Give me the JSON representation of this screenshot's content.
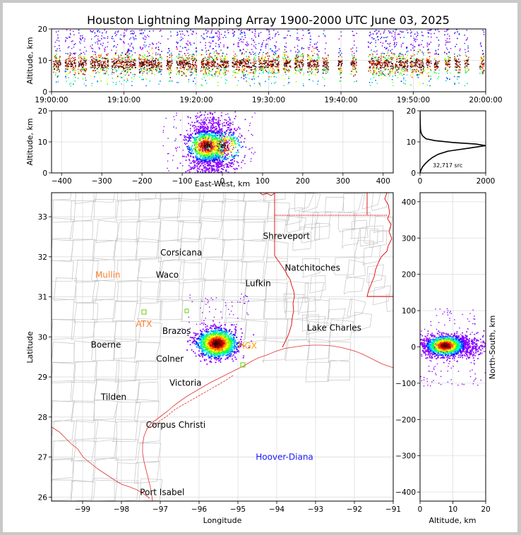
{
  "title": "Houston Lightning Mapping Array 1900-2000 UTC June 03, 2025",
  "chart_data": [
    {
      "type": "scatter",
      "panel": "time-altitude",
      "ylabel": "Altitude, km",
      "xlim": [
        "19:00:00",
        "20:00:00"
      ],
      "ylim": [
        0,
        20
      ],
      "x_ticks": [
        "19:00:00",
        "19:10:00",
        "19:20:00",
        "19:30:00",
        "19:40:00",
        "19:50:00",
        "20:00:00"
      ],
      "y_ticks": [
        0,
        10,
        20
      ],
      "activity_bursts_min": [
        [
          0.2,
          1.2
        ],
        [
          1.8,
          3.3
        ],
        [
          3.6,
          4.8
        ],
        [
          5.3,
          7.8
        ],
        [
          8.2,
          11.6
        ],
        [
          12.0,
          15.2
        ],
        [
          15.8,
          16.6
        ],
        [
          17.2,
          20.0
        ],
        [
          20.5,
          24.4
        ],
        [
          24.9,
          28.2
        ],
        [
          28.5,
          31.4
        ],
        [
          31.9,
          33.0
        ],
        [
          33.5,
          34.8
        ],
        [
          35.3,
          36.9
        ],
        [
          37.4,
          38.2
        ],
        [
          39.5,
          40.1
        ],
        [
          41.3,
          42.1
        ],
        [
          43.7,
          49.2
        ],
        [
          49.5,
          51.4
        ],
        [
          51.7,
          52.4
        ],
        [
          52.8,
          53.5
        ],
        [
          54.2,
          55.1
        ],
        [
          55.6,
          56.4
        ],
        [
          57.0,
          57.6
        ],
        [
          59.1,
          59.7
        ]
      ],
      "core_altitude_km": [
        7,
        11
      ]
    },
    {
      "type": "scatter",
      "panel": "east-west-altitude",
      "xlabel": "East-West, km",
      "ylabel": "Altitude, km",
      "xlim": [
        -425,
        425
      ],
      "ylim": [
        0,
        20
      ],
      "x_ticks": [
        -400,
        -300,
        -200,
        -100,
        0,
        100,
        200,
        300,
        400
      ],
      "y_ticks": [
        0,
        10,
        20
      ],
      "cell_centers_x_km": [
        -40,
        0
      ],
      "core_altitude_km": [
        6,
        11
      ]
    },
    {
      "type": "line",
      "panel": "altitude-histogram",
      "xlim": [
        0,
        2000
      ],
      "ylim": [
        0,
        20
      ],
      "x_ticks": [
        0,
        2000
      ],
      "y_ticks": [
        0,
        10,
        20
      ],
      "annotation": "32,717 src",
      "profile": [
        [
          0,
          0
        ],
        [
          30,
          1
        ],
        [
          80,
          2
        ],
        [
          160,
          3
        ],
        [
          260,
          4
        ],
        [
          380,
          5
        ],
        [
          550,
          6
        ],
        [
          850,
          7
        ],
        [
          1500,
          8
        ],
        [
          2000,
          8.8
        ],
        [
          1700,
          9.3
        ],
        [
          1000,
          9.8
        ],
        [
          450,
          10.4
        ],
        [
          180,
          11
        ],
        [
          70,
          12
        ],
        [
          30,
          13
        ],
        [
          12,
          14
        ],
        [
          6,
          16
        ],
        [
          2,
          18
        ],
        [
          1,
          20
        ]
      ]
    },
    {
      "type": "scatter",
      "panel": "plan-view-map",
      "xlabel": "Longitude",
      "ylabel": "Latitude",
      "xlim": [
        -99.8,
        -91
      ],
      "ylim": [
        25.9,
        33.6
      ],
      "x_ticks": [
        -99,
        -98,
        -97,
        -96,
        -95,
        -94,
        -93,
        -92,
        -91
      ],
      "y_ticks": [
        26,
        27,
        28,
        29,
        30,
        31,
        32,
        33
      ],
      "city_labels": [
        {
          "name": "Shreveport",
          "lon": -93.75,
          "lat": 32.52,
          "color": "#000000"
        },
        {
          "name": "Corsicana",
          "lon": -96.46,
          "lat": 32.1,
          "color": "#000000"
        },
        {
          "name": "Natchitoches",
          "lon": -93.08,
          "lat": 31.72,
          "color": "#000000"
        },
        {
          "name": "Mullin",
          "lon": -98.35,
          "lat": 31.55,
          "color": "#ff7f2a"
        },
        {
          "name": "Waco",
          "lon": -96.82,
          "lat": 31.55,
          "color": "#000000"
        },
        {
          "name": "Lufkin",
          "lon": -94.48,
          "lat": 31.34,
          "color": "#000000"
        },
        {
          "name": "Lake Charles",
          "lon": -92.52,
          "lat": 30.23,
          "color": "#000000"
        },
        {
          "name": "ATX",
          "lon": -97.42,
          "lat": 30.32,
          "color": "#ff7f2a"
        },
        {
          "name": "Brazos",
          "lon": -96.58,
          "lat": 30.15,
          "color": "#000000"
        },
        {
          "name": "Boerne",
          "lon": -98.4,
          "lat": 29.8,
          "color": "#000000"
        },
        {
          "name": "HGX",
          "lon": -94.75,
          "lat": 29.78,
          "color": "#ffa500"
        },
        {
          "name": "Colner",
          "lon": -96.75,
          "lat": 29.45,
          "color": "#000000"
        },
        {
          "name": "Victoria",
          "lon": -96.35,
          "lat": 28.85,
          "color": "#000000"
        },
        {
          "name": "Tilden",
          "lon": -98.2,
          "lat": 28.5,
          "color": "#000000"
        },
        {
          "name": "Corpus Christi",
          "lon": -96.6,
          "lat": 27.8,
          "color": "#000000"
        },
        {
          "name": "Hoover-Diana",
          "lon": -93.8,
          "lat": 27.0,
          "color": "#1a1aff"
        },
        {
          "name": "Port Isabel",
          "lon": -96.95,
          "lat": 26.12,
          "color": "#000000"
        }
      ],
      "cells": [
        {
          "lon": -95.55,
          "lat": 29.85,
          "spread_lon": 0.55,
          "spread_lat": 0.38
        }
      ]
    },
    {
      "type": "scatter",
      "panel": "altitude-north-south",
      "xlabel": "Altitude, km",
      "ylabel": "North-South, km",
      "xlim": [
        0,
        20
      ],
      "ylim": [
        -425,
        425
      ],
      "x_ticks": [
        0,
        10,
        20
      ],
      "y_ticks": [
        -400,
        -300,
        -200,
        -100,
        0,
        100,
        200,
        300,
        400
      ],
      "core_altitude_km": [
        5,
        11
      ],
      "cell_center_y_km": 5
    }
  ]
}
